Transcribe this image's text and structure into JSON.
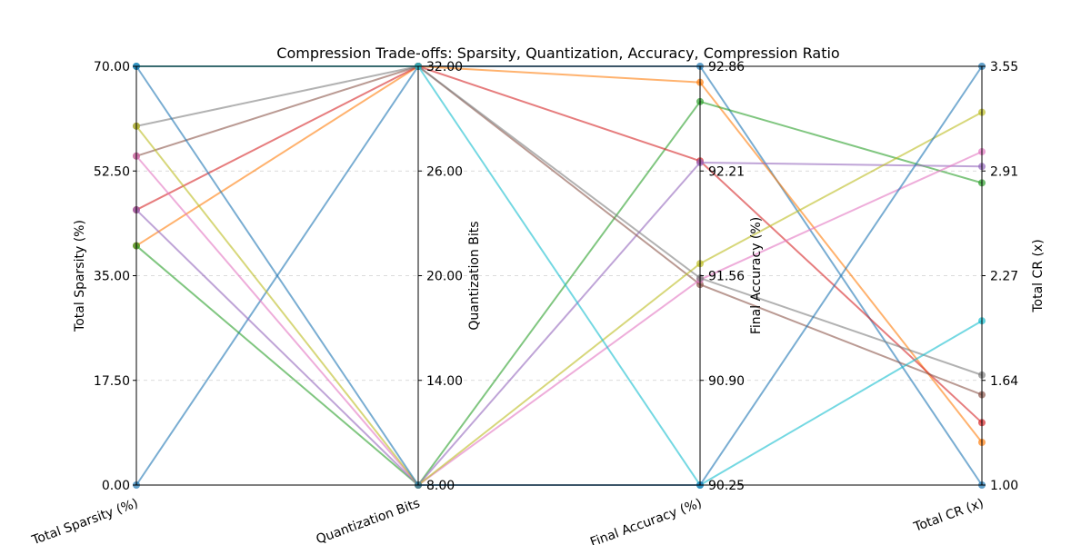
{
  "chart_data": {
    "type": "parallel-coordinates",
    "title": "Compression Trade-offs: Sparsity, Quantization, Accuracy, Compression Ratio",
    "grid": true,
    "axes": [
      {
        "label": "Total Sparsity (%)",
        "range": [
          0,
          70
        ],
        "ticks": [
          "0.00",
          "17.50",
          "35.00",
          "52.50",
          "70.00"
        ]
      },
      {
        "label": "Quantization Bits",
        "range": [
          8,
          32
        ],
        "ticks": [
          "8.00",
          "14.00",
          "20.00",
          "26.00",
          "32.00"
        ]
      },
      {
        "label": "Final Accuracy (%)",
        "range": [
          90.25,
          92.86
        ],
        "ticks": [
          "90.25",
          "90.90",
          "91.56",
          "92.21",
          "92.86"
        ]
      },
      {
        "label": "Total CR (x)",
        "range": [
          1.0,
          3.55
        ],
        "ticks": [
          "1.00",
          "1.64",
          "2.27",
          "2.91",
          "3.55"
        ]
      }
    ],
    "series": [
      {
        "color": "#1f77b4",
        "values": [
          0,
          32,
          92.86,
          1.0
        ]
      },
      {
        "color": "#ff7f0e",
        "values": [
          40,
          32,
          92.76,
          1.26
        ]
      },
      {
        "color": "#2ca02c",
        "values": [
          40,
          8,
          92.64,
          2.84
        ]
      },
      {
        "color": "#d62728",
        "values": [
          46,
          32,
          92.27,
          1.38
        ]
      },
      {
        "color": "#9467bd",
        "values": [
          46,
          8,
          92.26,
          2.94
        ]
      },
      {
        "color": "#8c564b",
        "values": [
          55,
          32,
          91.5,
          1.55
        ]
      },
      {
        "color": "#e377c2",
        "values": [
          55,
          8,
          91.53,
          3.03
        ]
      },
      {
        "color": "#7f7f7f",
        "values": [
          60,
          32,
          91.54,
          1.67
        ]
      },
      {
        "color": "#bcbd22",
        "values": [
          60,
          8,
          91.63,
          3.27
        ]
      },
      {
        "color": "#17becf",
        "values": [
          70,
          32,
          90.25,
          2.0
        ]
      },
      {
        "color": "#1f77b4",
        "values": [
          70,
          8,
          90.25,
          3.55
        ]
      }
    ]
  }
}
